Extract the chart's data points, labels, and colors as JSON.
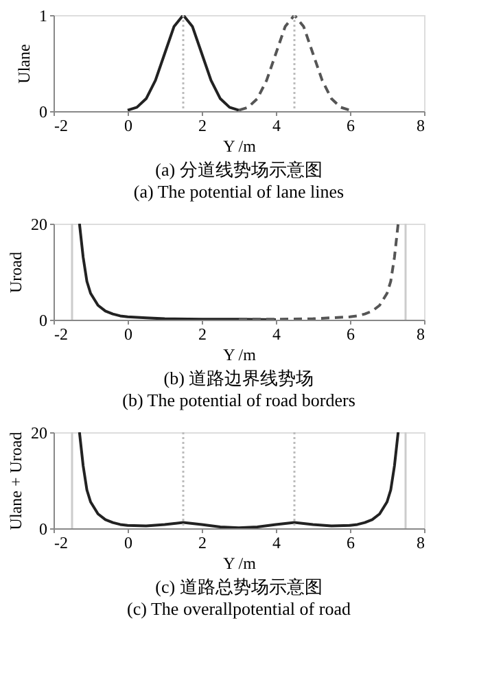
{
  "chart_data": [
    {
      "type": "line",
      "title": "(a) 分道线势场示意图",
      "subtitle": "(a) The potential of lane lines",
      "xlabel": "Y /m",
      "ylabel": "Ulane",
      "xlim": [
        -2,
        8
      ],
      "xticks": [
        -2,
        0,
        2,
        4,
        6,
        8
      ],
      "ylim": [
        0,
        1
      ],
      "yticks": [
        0,
        1
      ],
      "grid": false,
      "marker": "none",
      "series": [
        {
          "color": "#222222",
          "line_style": "solid",
          "x": [
            0,
            0.25,
            0.5,
            0.75,
            1.0,
            1.25,
            1.5,
            1.75,
            2.0,
            2.25,
            2.5,
            2.75,
            3.0
          ],
          "values": [
            0.01,
            0.04,
            0.13,
            0.32,
            0.6,
            0.88,
            1,
            0.88,
            0.6,
            0.32,
            0.13,
            0.04,
            0.01
          ]
        },
        {
          "color": "#555555",
          "line_style": "dashed",
          "x": [
            3.0,
            3.25,
            3.5,
            3.75,
            4.0,
            4.25,
            4.5,
            4.75,
            5.0,
            5.25,
            5.5,
            5.75,
            6.0
          ],
          "values": [
            0.01,
            0.04,
            0.13,
            0.32,
            0.6,
            0.88,
            1,
            0.88,
            0.6,
            0.32,
            0.13,
            0.04,
            0.01
          ]
        }
      ],
      "ref_lines": [
        {
          "axis": "x",
          "value": 1.5,
          "color": "#bbbbbb",
          "line_style": "dotted"
        },
        {
          "axis": "x",
          "value": 4.5,
          "color": "#bbbbbb",
          "line_style": "dotted"
        }
      ]
    },
    {
      "type": "line",
      "title": "(b) 道路边界线势场",
      "subtitle": "(b) The potential of road borders",
      "xlabel": "Y /m",
      "ylabel": "Uroad",
      "xlim": [
        -2,
        8
      ],
      "xticks": [
        -2,
        0,
        2,
        4,
        6,
        8
      ],
      "ylim": [
        0,
        20
      ],
      "yticks": [
        0,
        20
      ],
      "grid": false,
      "marker": "none",
      "series": [
        {
          "color": "#222222",
          "line_style": "solid",
          "x": [
            -1.3,
            -1.2,
            -1.1,
            -1.0,
            -0.8,
            -0.6,
            -0.4,
            -0.2,
            0,
            0.5,
            1,
            2,
            3,
            4
          ],
          "values": [
            20,
            13,
            8,
            5.5,
            3,
            1.8,
            1.2,
            0.8,
            0.6,
            0.4,
            0.2,
            0.1,
            0.1,
            0.0
          ]
        },
        {
          "color": "#555555",
          "line_style": "dashed",
          "x": [
            3,
            4,
            5,
            5.5,
            6.0,
            6.2,
            6.4,
            6.6,
            6.8,
            7.0,
            7.1,
            7.2,
            7.3
          ],
          "values": [
            0.1,
            0.1,
            0.2,
            0.4,
            0.6,
            0.8,
            1.2,
            1.8,
            3,
            5.5,
            8,
            13,
            20
          ]
        }
      ],
      "ref_lines": [
        {
          "axis": "x",
          "value": -1.5,
          "color": "#cccccc",
          "line_style": "solid"
        },
        {
          "axis": "x",
          "value": 7.5,
          "color": "#cccccc",
          "line_style": "solid"
        }
      ]
    },
    {
      "type": "line",
      "title": "(c) 道路总势场示意图",
      "subtitle": "(c) The overallpotential of road",
      "xlabel": "Y /m",
      "ylabel": "Ulane + Uroad",
      "xlim": [
        -2,
        8
      ],
      "xticks": [
        -2,
        0,
        2,
        4,
        6,
        8
      ],
      "ylim": [
        0,
        20
      ],
      "yticks": [
        0,
        20
      ],
      "grid": false,
      "marker": "none",
      "series": [
        {
          "color": "#222222",
          "line_style": "solid",
          "x": [
            -1.3,
            -1.2,
            -1.1,
            -1.0,
            -0.8,
            -0.6,
            -0.4,
            -0.2,
            0,
            0.5,
            1,
            1.5,
            2,
            2.5,
            3,
            3.5,
            4,
            4.5,
            5,
            5.5,
            6.0,
            6.2,
            6.4,
            6.6,
            6.8,
            7.0,
            7.1,
            7.2,
            7.3
          ],
          "values": [
            20,
            13,
            8,
            5.5,
            3,
            1.8,
            1.2,
            0.8,
            0.6,
            0.5,
            0.8,
            1.2,
            0.8,
            0.3,
            0.1,
            0.3,
            0.8,
            1.2,
            0.8,
            0.5,
            0.6,
            0.8,
            1.2,
            1.8,
            3,
            5.5,
            8,
            13,
            20
          ]
        }
      ],
      "ref_lines": [
        {
          "axis": "x",
          "value": -1.5,
          "color": "#cccccc",
          "line_style": "solid"
        },
        {
          "axis": "x",
          "value": 7.5,
          "color": "#cccccc",
          "line_style": "solid"
        },
        {
          "axis": "x",
          "value": 1.5,
          "color": "#bbbbbb",
          "line_style": "dotted"
        },
        {
          "axis": "x",
          "value": 4.5,
          "color": "#bbbbbb",
          "line_style": "dotted"
        }
      ]
    }
  ]
}
